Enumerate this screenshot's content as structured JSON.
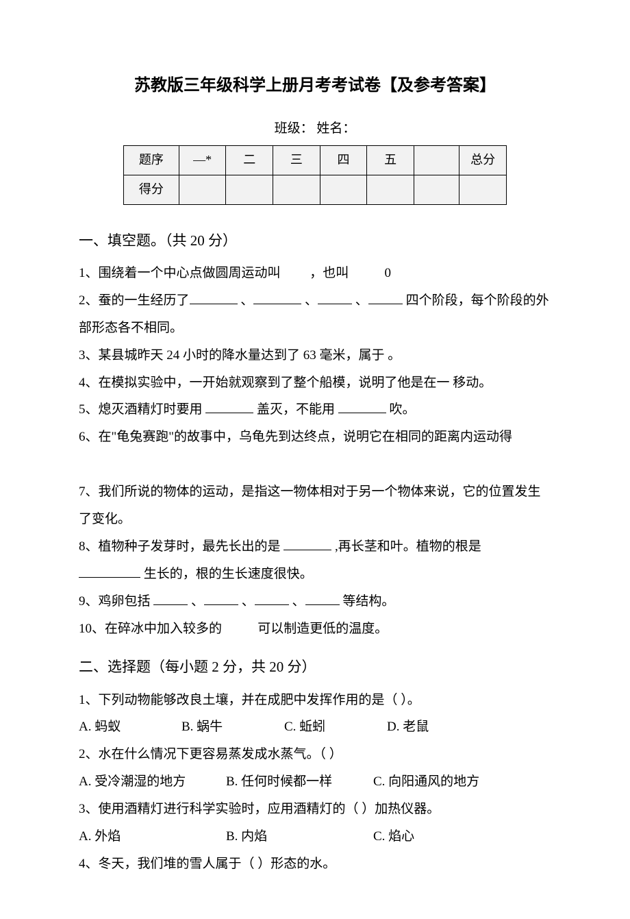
{
  "title": "苏教版三年级科学上册月考考试卷【及参考答案】",
  "classline": "班级：  姓名：",
  "score_table": {
    "row1": {
      "label": "题序",
      "cols": [
        "—*",
        "二",
        "三",
        "四",
        "五",
        "",
        "总分"
      ]
    },
    "row2": {
      "label": "得分",
      "cols": [
        "",
        "",
        "",
        "",
        "",
        "",
        ""
      ]
    }
  },
  "section1": {
    "heading": "一、填空题。（共 20 分）",
    "q1_a": "1、围绕着一个中心点做圆周运动叫",
    "q1_b": "，也叫",
    "q1_c": "0",
    "q2_a": "2、蚕的一生经历了",
    "q2_sep": "、",
    "q2_b": "四个阶段，每个阶段的外部形态各不相同。",
    "q3": "3、某县城昨天 24 小时的降水量达到了 63 毫米，属于 。",
    "q4": "4、在模拟实验中，一开始就观察到了整个船模，说明了他是在一    移动。",
    "q5_a": "5、熄灭酒精灯时要用",
    "q5_b": "盖灭，不能用",
    "q5_c": "吹。",
    "q6": "6、在\"龟兔赛跑\"的故事中，乌龟先到达终点，说明它在相同的距离内运动得",
    "q7": "7、我们所说的物体的运动，是指这一物体相对于另一个物体来说，它的位置发生了变化。",
    "q8_a": "8、植物种子发芽时，最先长出的是",
    "q8_b": ",再长茎和叶。植物的根是",
    "q8_c": "生长的，根的生长速度很快。",
    "q9_a": "9、鸡卵包括",
    "q9_sep": "、",
    "q9_b": "等结构。",
    "q10_a": "10、在碎冰中加入较多的",
    "q10_b": "可以制造更低的温度。"
  },
  "section2": {
    "heading": "二、选择题（每小题 2 分，共 20 分）",
    "q1": {
      "stem": "1、下列动物能够改良土壤，并在成肥中发挥作用的是（    ）。",
      "A": "A. 蚂蚁",
      "B": "B. 蜗牛",
      "C": "C. 蚯蚓",
      "D": "D. 老鼠"
    },
    "q2": {
      "stem": "2、水在什么情况下更容易蒸发成水蒸气。（    ）",
      "A": "A. 受冷潮湿的地方",
      "B": "B. 任何时候都一样",
      "C": "C. 向阳通风的地方"
    },
    "q3": {
      "stem": "3、使用酒精灯进行科学实验时，应用酒精灯的（      ）加热仪器。",
      "A": "A. 外焰",
      "B": "B. 内焰",
      "C": "C. 焰心"
    },
    "q4": {
      "stem": "4、冬天，我们堆的雪人属于（       ）形态的水。"
    }
  },
  "colors": {
    "text": "#000000",
    "background": "#ffffff",
    "table_bg": "#f2f2f2",
    "border": "#000000"
  },
  "fonts": {
    "body_family": "SimSun",
    "title_size_pt": 18,
    "body_size_pt": 14,
    "section_size_pt": 16
  }
}
